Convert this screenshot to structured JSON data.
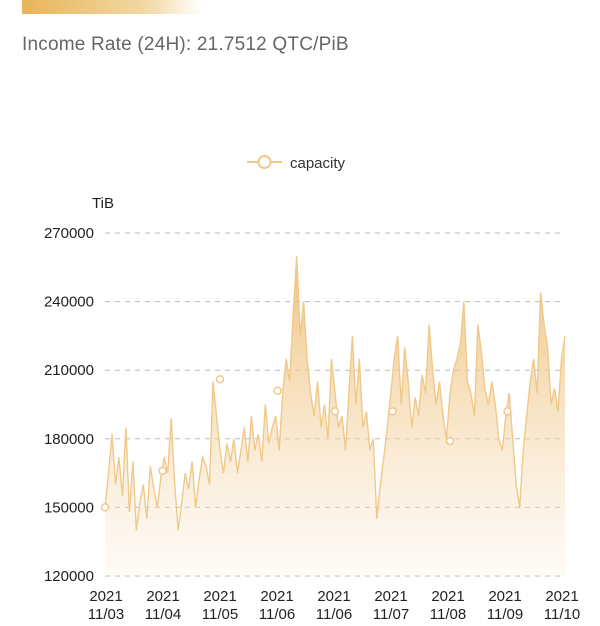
{
  "header": {
    "income_rate": "Income Rate (24H): 21.7512 QTC/PiB"
  },
  "colors": {
    "accent": "#e8b45a",
    "line": "#f0c98a",
    "grid": "#bbbbbb"
  },
  "chart_data": {
    "type": "area",
    "ylabel": "TiB",
    "legend": [
      "capacity"
    ],
    "legend_position": "top-center",
    "grid": true,
    "ylim": [
      120000,
      270000
    ],
    "y_ticks": [
      120000,
      150000,
      180000,
      210000,
      240000,
      270000
    ],
    "x_tick_labels": [
      {
        "year": "2021",
        "date": "11/03"
      },
      {
        "year": "2021",
        "date": "11/04"
      },
      {
        "year": "2021",
        "date": "11/05"
      },
      {
        "year": "2021",
        "date": "11/06"
      },
      {
        "year": "2021",
        "date": "11/06"
      },
      {
        "year": "2021",
        "date": "11/07"
      },
      {
        "year": "2021",
        "date": "11/08"
      },
      {
        "year": "2021",
        "date": "11/09"
      },
      {
        "year": "2021",
        "date": "11/10"
      }
    ],
    "series": [
      {
        "name": "capacity",
        "values": [
          150000,
          165000,
          182000,
          160000,
          172000,
          155000,
          185000,
          148000,
          170000,
          140000,
          152000,
          160000,
          145000,
          168000,
          158000,
          150000,
          163000,
          172000,
          165000,
          189000,
          160000,
          140000,
          152000,
          165000,
          158000,
          170000,
          150000,
          162000,
          172000,
          168000,
          160000,
          205000,
          190000,
          175000,
          165000,
          178000,
          170000,
          180000,
          165000,
          175000,
          185000,
          170000,
          190000,
          175000,
          182000,
          170000,
          195000,
          178000,
          185000,
          190000,
          175000,
          200000,
          215000,
          205000,
          235000,
          260000,
          225000,
          240000,
          215000,
          200000,
          190000,
          205000,
          185000,
          195000,
          180000,
          215000,
          200000,
          185000,
          190000,
          175000,
          200000,
          225000,
          195000,
          215000,
          185000,
          192000,
          175000,
          180000,
          145000,
          160000,
          172000,
          185000,
          200000,
          215000,
          225000,
          195000,
          220000,
          205000,
          185000,
          198000,
          190000,
          208000,
          200000,
          230000,
          210000,
          195000,
          205000,
          190000,
          180000,
          200000,
          210000,
          215000,
          222000,
          240000,
          205000,
          200000,
          190000,
          230000,
          218000,
          202000,
          195000,
          205000,
          195000,
          180000,
          175000,
          190000,
          200000,
          180000,
          160000,
          150000,
          175000,
          190000,
          205000,
          215000,
          200000,
          244000,
          230000,
          220000,
          195000,
          202000,
          192000,
          215000,
          225000
        ]
      }
    ],
    "marked_points": [
      150000,
      166000,
      206000,
      201000,
      192000,
      192000,
      179000,
      192000
    ]
  }
}
